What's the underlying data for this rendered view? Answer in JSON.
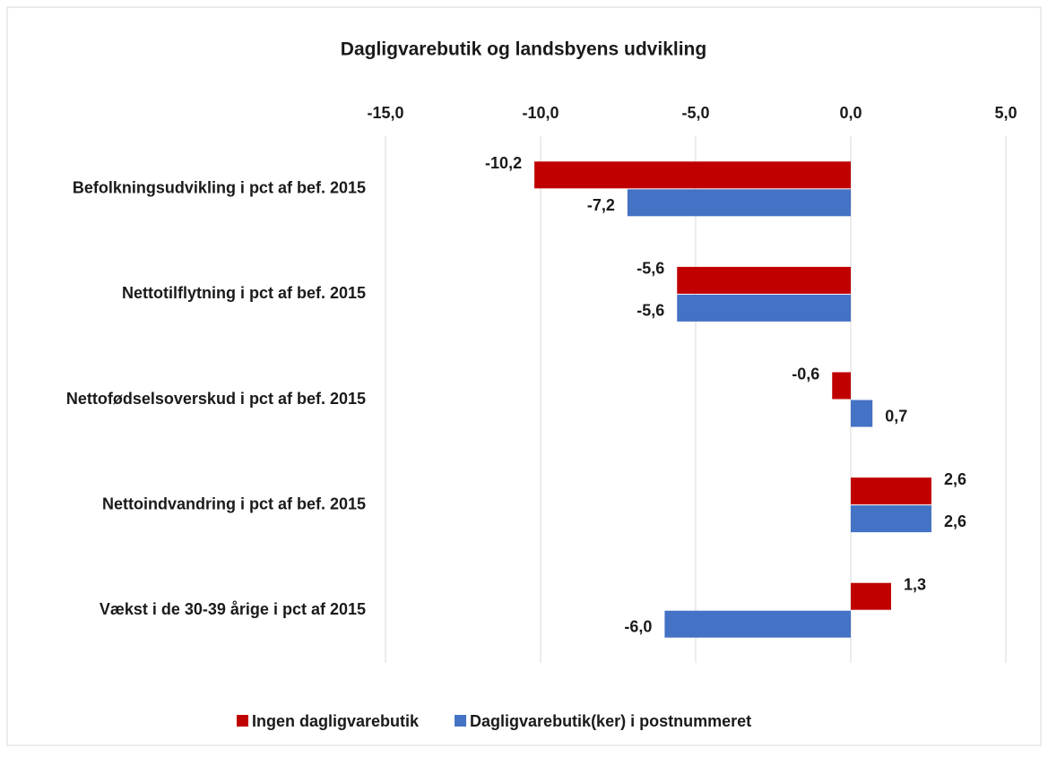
{
  "chart_data": {
    "type": "barh",
    "title": "Dagligvarebutik og landsbyens udvikling",
    "categories": [
      "Befolkningsudvikling i pct af bef. 2015",
      "Nettotilflytning i pct af bef.  2015",
      "Nettofødselsoverskud i pct af bef. 2015",
      "Nettoindvandring i pct af bef. 2015",
      "Vækst i de 30-39 årige i pct af 2015"
    ],
    "series": [
      {
        "name": "Ingen dagligvarebutik",
        "color": "#c00000",
        "values": [
          -10.2,
          -5.6,
          -0.6,
          2.6,
          1.3
        ],
        "value_labels": [
          "-10,2",
          "-5,6",
          "-0,6",
          "2,6",
          "1,3"
        ]
      },
      {
        "name": "Dagligvarebutik(ker) i postnummeret",
        "color": "#4472c4",
        "values": [
          -7.2,
          -5.6,
          0.7,
          2.6,
          -6.0
        ],
        "value_labels": [
          "-7,2",
          "-5,6",
          "0,7",
          "2,6",
          "-6,0"
        ]
      }
    ],
    "xlim": [
      -15,
      5
    ],
    "xticks": [
      {
        "value": -15,
        "label": "-15,0"
      },
      {
        "value": -10,
        "label": "-10,0"
      },
      {
        "value": -5,
        "label": "-5,0"
      },
      {
        "value": 0,
        "label": "0,0"
      },
      {
        "value": 5,
        "label": "5,0"
      }
    ],
    "grid": true,
    "legend": "bottom"
  }
}
